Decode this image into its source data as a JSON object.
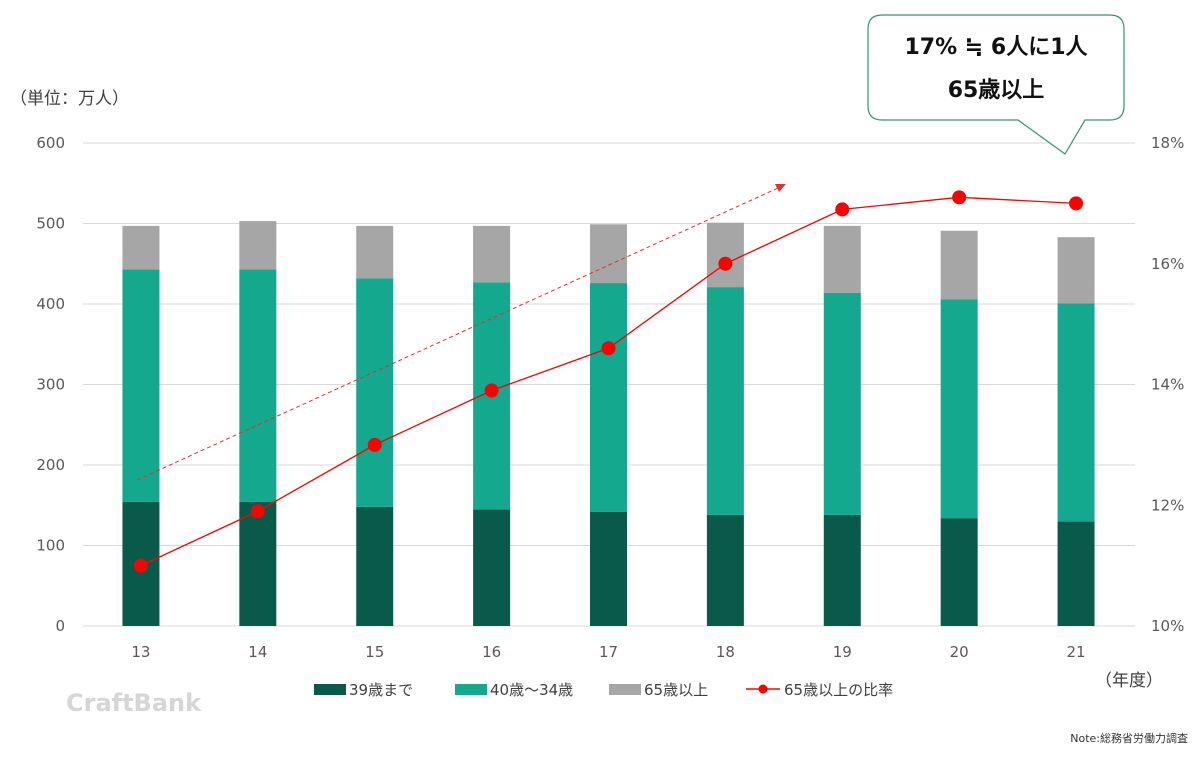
{
  "chart_data": {
    "type": "bar",
    "stacked": true,
    "unit_label": "（単位：万人）",
    "xlabel": "（年度）",
    "categories": [
      "13",
      "14",
      "15",
      "16",
      "17",
      "18",
      "19",
      "20",
      "21"
    ],
    "series": [
      {
        "name": "39歳まで",
        "color": "#0a5a4c",
        "values": [
          154,
          154,
          148,
          145,
          142,
          138,
          138,
          134,
          130
        ]
      },
      {
        "name": "40歳～34歳",
        "color": "#14a88f",
        "values": [
          289,
          289,
          284,
          282,
          284,
          283,
          276,
          272,
          271
        ]
      },
      {
        "name": "65歳以上",
        "color": "#a6a6a6",
        "values": [
          54,
          60,
          65,
          70,
          73,
          80,
          83,
          85,
          82
        ]
      }
    ],
    "line_series": {
      "name": "65歳以上の比率",
      "color": "#ff0000",
      "axis": "right",
      "values": [
        11.0,
        11.9,
        13.0,
        13.9,
        14.6,
        16.0,
        16.9,
        17.1,
        17.0
      ]
    },
    "ylim": [
      0,
      600
    ],
    "yticks": [
      "0",
      "100",
      "200",
      "300",
      "400",
      "500",
      "600"
    ],
    "y2lim": [
      10,
      18
    ],
    "y2ticks": [
      "10%",
      "12%",
      "14%",
      "16%",
      "18%"
    ],
    "grid": true,
    "legend_position": "bottom",
    "callout": {
      "line1": "17% ≒ 6人に1人",
      "line2": "65歳以上"
    },
    "note": "Note:総務省労働力調査",
    "logo": "CraftBank"
  }
}
